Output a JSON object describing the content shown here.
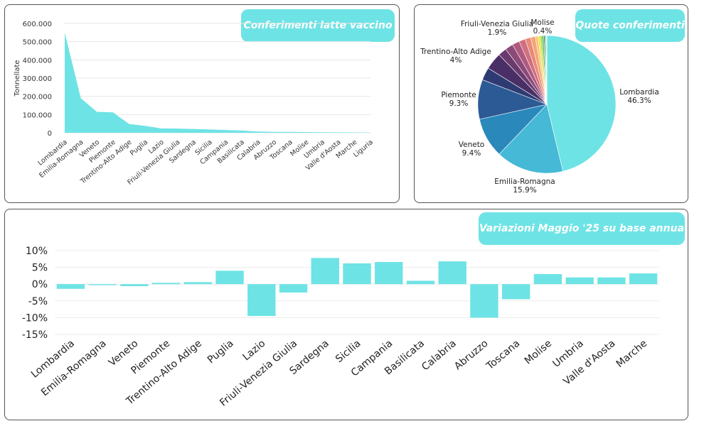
{
  "chart_data": [
    {
      "type": "area",
      "title": "Conferimenti latte vaccino",
      "ylabel": "Tonnellate",
      "xlabel": "",
      "ylim": [
        0,
        600000
      ],
      "yticks": [
        "0",
        "100.000",
        "200.000",
        "300.000",
        "400.000",
        "500.000",
        "600.000"
      ],
      "categories": [
        "Lombardia",
        "Emilia-Romagna",
        "Veneto",
        "Piemonte",
        "Trentino-Alto Adige",
        "Puglia",
        "Lazio",
        "Friuli-Venezia Giulia",
        "Sardegna",
        "Sicilia",
        "Campania",
        "Basilicata",
        "Calabria",
        "Abruzzo",
        "Toscana",
        "Molise",
        "Umbria",
        "Valle d'Aosta",
        "Marche",
        "Liguria"
      ],
      "values": [
        550000,
        190000,
        115000,
        112000,
        48000,
        38000,
        24000,
        23000,
        21000,
        18000,
        15000,
        12000,
        7000,
        5000,
        5000,
        4000,
        3000,
        2500,
        2000,
        1000
      ],
      "color": "#6ee3e5"
    },
    {
      "type": "pie",
      "title": "Quote conferimenti",
      "slices": [
        {
          "name": "Lombardia",
          "label": "Lombardia",
          "pct_label": "46.3%",
          "value": 46.3,
          "color": "#6ee3e5"
        },
        {
          "name": "Emilia-Romagna",
          "label": "Emilia-Romagna",
          "pct_label": "15.9%",
          "value": 15.9,
          "color": "#45b9d6"
        },
        {
          "name": "Veneto",
          "label": "Veneto",
          "pct_label": "9.4%",
          "value": 9.4,
          "color": "#2a88bb"
        },
        {
          "name": "Piemonte",
          "label": "Piemonte",
          "pct_label": "9.3%",
          "value": 9.3,
          "color": "#2c5a94"
        },
        {
          "name": "Puglia",
          "label": "",
          "pct_label": "",
          "value": 3.0,
          "color": "#2e3a72"
        },
        {
          "name": "Trentino-Alto Adige",
          "label": "Trentino-Alto Adige",
          "pct_label": "4%",
          "value": 4.0,
          "color": "#4a2f66"
        },
        {
          "name": "Lazio",
          "label": "",
          "pct_label": "",
          "value": 2.0,
          "color": "#6a3a6e"
        },
        {
          "name": "Friuli-Venezia Giulia",
          "label": "Friuli-Venezia Giulia",
          "pct_label": "1.9%",
          "value": 1.9,
          "color": "#8c4a78"
        },
        {
          "name": "Sardegna",
          "label": "",
          "pct_label": "",
          "value": 1.7,
          "color": "#b05a80"
        },
        {
          "name": "Sicilia",
          "label": "",
          "pct_label": "",
          "value": 1.5,
          "color": "#d0707f"
        },
        {
          "name": "Campania",
          "label": "",
          "pct_label": "",
          "value": 1.3,
          "color": "#e8897a"
        },
        {
          "name": "Basilicata",
          "label": "",
          "pct_label": "",
          "value": 1.1,
          "color": "#f4a574"
        },
        {
          "name": "Calabria",
          "label": "",
          "pct_label": "",
          "value": 0.6,
          "color": "#f7c46a"
        },
        {
          "name": "Abruzzo",
          "label": "",
          "pct_label": "",
          "value": 0.5,
          "color": "#f2e04a"
        },
        {
          "name": "Toscana",
          "label": "",
          "pct_label": "",
          "value": 0.45,
          "color": "#a8d84a"
        },
        {
          "name": "Molise",
          "label": "Molise",
          "pct_label": "0.4%",
          "value": 0.4,
          "color": "#4fbf55"
        },
        {
          "name": "Umbria",
          "label": "",
          "pct_label": "",
          "value": 0.3,
          "color": "#2f9e5a"
        },
        {
          "name": "Valle d'Aosta",
          "label": "",
          "pct_label": "",
          "value": 0.2,
          "color": "#1f7a55"
        },
        {
          "name": "Marche",
          "label": "",
          "pct_label": "",
          "value": 0.15,
          "color": "#145f4a"
        },
        {
          "name": "Liguria",
          "label": "",
          "pct_label": "",
          "value": 0.1,
          "color": "#0d4a3d"
        }
      ]
    },
    {
      "type": "bar",
      "title": "Variazioni Maggio '25 su base annua",
      "ylim": [
        -15,
        10
      ],
      "yticks": [
        "-15%",
        "-10%",
        "-5%",
        "0%",
        "5%",
        "10%"
      ],
      "categories": [
        "Lombardia",
        "Emilia-Romagna",
        "Veneto",
        "Piemonte",
        "Trentino-Alto Adige",
        "Puglia",
        "Lazio",
        "Friuli-Venezia Giulia",
        "Sardegna",
        "Sicilia",
        "Campania",
        "Basilicata",
        "Calabria",
        "Abruzzo",
        "Toscana",
        "Molise",
        "Umbria",
        "Valle d'Aosta",
        "Marche"
      ],
      "values": [
        -1.4,
        -0.3,
        -0.6,
        0.4,
        0.6,
        4.0,
        -9.5,
        -2.5,
        7.8,
        6.2,
        6.6,
        1.0,
        6.8,
        -10.0,
        -4.5,
        3.0,
        2.0,
        2.0,
        3.2
      ],
      "color": "#6ee3e5"
    }
  ]
}
